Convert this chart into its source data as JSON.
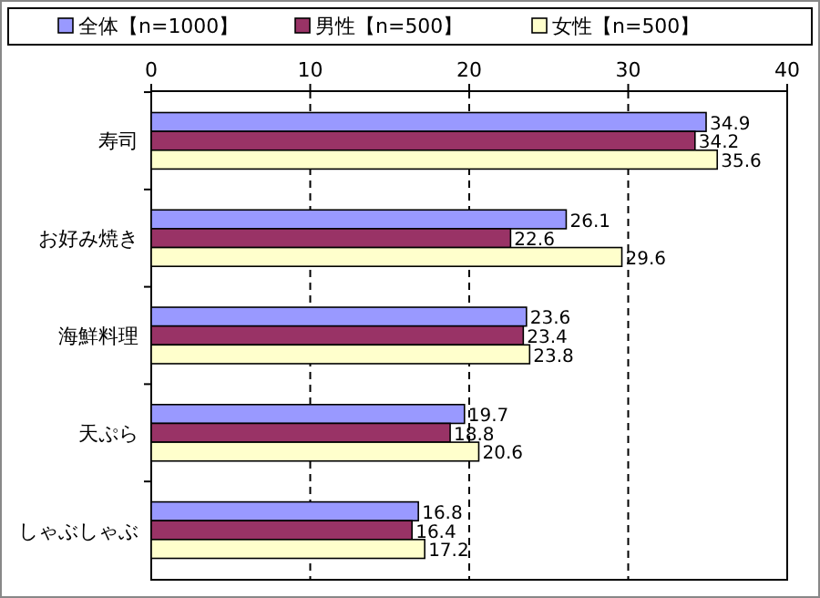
{
  "chart_data": {
    "type": "bar",
    "orientation": "horizontal",
    "categories": [
      "寿司",
      "お好み焼き",
      "海鮮料理",
      "天ぷら",
      "しゃぶしゃぶ"
    ],
    "series": [
      {
        "name": "全体【n=1000】",
        "color": "#9999ff",
        "values": [
          34.9,
          26.1,
          23.6,
          19.7,
          16.8
        ]
      },
      {
        "name": "男性【n=500】",
        "color": "#993366",
        "values": [
          34.2,
          22.6,
          23.4,
          18.8,
          16.4
        ]
      },
      {
        "name": "女性【n=500】",
        "color": "#ffffcc",
        "values": [
          35.6,
          29.6,
          23.8,
          20.6,
          17.2
        ]
      }
    ],
    "xlim": [
      0,
      40
    ],
    "xticks": [
      0,
      10,
      20,
      30,
      40
    ],
    "grid": "x",
    "legend": "top",
    "data_labels": true
  }
}
